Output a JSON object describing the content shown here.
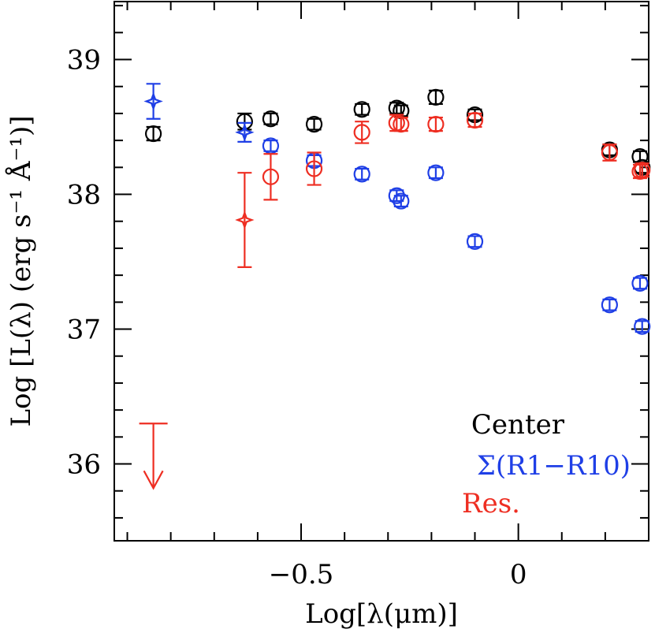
{
  "chart_data": {
    "type": "scatter",
    "xlabel": "Log[λ(μm)]",
    "ylabel": "Log [L(λ) (erg s⁻¹ Å⁻¹)]",
    "xlim": [
      -0.93,
      0.3
    ],
    "ylim": [
      35.43,
      39.43
    ],
    "x_ticks": [
      {
        "value": -0.5,
        "label": "−0.5"
      },
      {
        "value": 0,
        "label": "0"
      }
    ],
    "y_ticks": [
      {
        "value": 36,
        "label": "36"
      },
      {
        "value": 37,
        "label": "37"
      },
      {
        "value": 38,
        "label": "38"
      },
      {
        "value": 39,
        "label": "39"
      }
    ],
    "x_minor_step": 0.1,
    "y_minor_step": 0.2,
    "series": [
      {
        "name": "Center",
        "color": "#000000",
        "points": [
          {
            "x": -0.84,
            "y": 38.45,
            "err": 0.05,
            "marker": "circle"
          },
          {
            "x": -0.63,
            "y": 38.54,
            "err": 0.06,
            "marker": "circle"
          },
          {
            "x": -0.57,
            "y": 38.56,
            "err": 0.04,
            "marker": "circle"
          },
          {
            "x": -0.47,
            "y": 38.52,
            "err": 0.04,
            "marker": "circle"
          },
          {
            "x": -0.36,
            "y": 38.63,
            "err": 0.04,
            "marker": "circle"
          },
          {
            "x": -0.28,
            "y": 38.64,
            "err": 0.04,
            "marker": "circle"
          },
          {
            "x": -0.27,
            "y": 38.62,
            "err": 0.04,
            "marker": "circle"
          },
          {
            "x": -0.19,
            "y": 38.72,
            "err": 0.05,
            "marker": "circle"
          },
          {
            "x": -0.1,
            "y": 38.59,
            "err": 0.04,
            "marker": "circle"
          },
          {
            "x": 0.21,
            "y": 38.33,
            "err": 0.04,
            "marker": "circle"
          },
          {
            "x": 0.28,
            "y": 38.28,
            "err": 0.04,
            "marker": "circle"
          },
          {
            "x": 0.285,
            "y": 38.2,
            "err": 0.04,
            "marker": "circle"
          }
        ]
      },
      {
        "name": "Σ(R1−R10)",
        "color": "#1f3fe6",
        "points": [
          {
            "x": -0.84,
            "y": 38.69,
            "err": 0.13,
            "marker": "star"
          },
          {
            "x": -0.63,
            "y": 38.46,
            "err": 0.07,
            "marker": "star"
          },
          {
            "x": -0.57,
            "y": 38.36,
            "err": 0.04,
            "marker": "circle"
          },
          {
            "x": -0.47,
            "y": 38.25,
            "err": 0.04,
            "marker": "circle"
          },
          {
            "x": -0.36,
            "y": 38.15,
            "err": 0.04,
            "marker": "circle"
          },
          {
            "x": -0.28,
            "y": 37.99,
            "err": 0.04,
            "marker": "circle"
          },
          {
            "x": -0.27,
            "y": 37.95,
            "err": 0.04,
            "marker": "circle"
          },
          {
            "x": -0.19,
            "y": 38.16,
            "err": 0.04,
            "marker": "circle"
          },
          {
            "x": -0.1,
            "y": 37.65,
            "err": 0.04,
            "marker": "circle"
          },
          {
            "x": 0.21,
            "y": 37.18,
            "err": 0.04,
            "marker": "circle"
          },
          {
            "x": 0.28,
            "y": 37.34,
            "err": 0.04,
            "marker": "circle"
          },
          {
            "x": 0.285,
            "y": 37.02,
            "err": 0.04,
            "marker": "circle"
          }
        ]
      },
      {
        "name": "Res.",
        "color": "#ee2e22",
        "points": [
          {
            "x": -0.84,
            "y": 36.3,
            "err": 0,
            "marker": "upper-limit"
          },
          {
            "x": -0.63,
            "y": 37.81,
            "err": 0.35,
            "marker": "star"
          },
          {
            "x": -0.57,
            "y": 38.13,
            "err": 0.17,
            "marker": "circle"
          },
          {
            "x": -0.47,
            "y": 38.19,
            "err": 0.12,
            "marker": "circle"
          },
          {
            "x": -0.36,
            "y": 38.46,
            "err": 0.08,
            "marker": "circle"
          },
          {
            "x": -0.28,
            "y": 38.53,
            "err": 0.06,
            "marker": "circle"
          },
          {
            "x": -0.27,
            "y": 38.52,
            "err": 0.05,
            "marker": "circle"
          },
          {
            "x": -0.19,
            "y": 38.52,
            "err": 0.05,
            "marker": "circle"
          },
          {
            "x": -0.1,
            "y": 38.55,
            "err": 0.05,
            "marker": "circle"
          },
          {
            "x": 0.21,
            "y": 38.31,
            "err": 0.06,
            "marker": "circle"
          },
          {
            "x": 0.28,
            "y": 38.17,
            "err": 0.05,
            "marker": "circle"
          },
          {
            "x": 0.285,
            "y": 38.18,
            "err": 0.05,
            "marker": "circle"
          }
        ]
      }
    ],
    "legend": {
      "position": "bottom-right",
      "entries": [
        {
          "label": "Center",
          "color": "#000000"
        },
        {
          "label": "Σ(R1−R10)",
          "color": "#1f3fe6"
        },
        {
          "label": "Res.",
          "color": "#ee2e22"
        }
      ]
    }
  }
}
